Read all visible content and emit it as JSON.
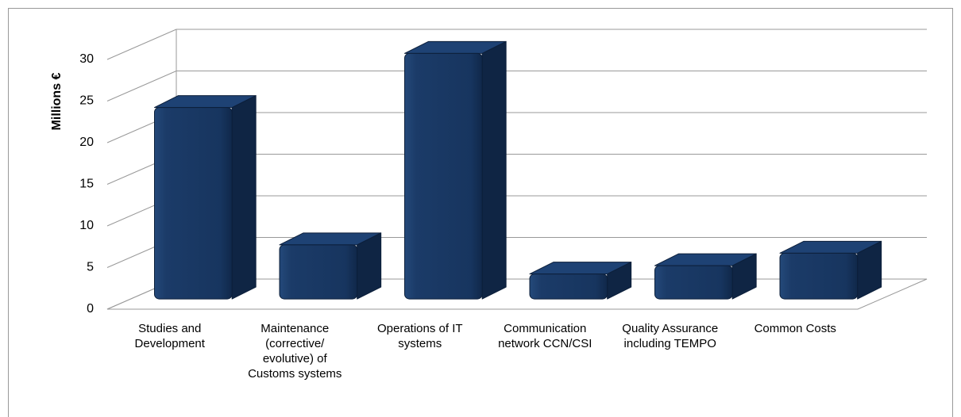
{
  "chart_data": {
    "type": "bar3d",
    "y_label": "Millions €",
    "categories": [
      "Studies and Development",
      "Maintenance (corrective/ evolutive) of Customs systems",
      "Operations of IT systems",
      "Communication network CCN/CSI",
      "Quality Assurance including TEMPO",
      "Common Costs"
    ],
    "values": [
      23,
      6.5,
      29.5,
      3,
      4,
      5.5
    ],
    "color": "#1a3a66",
    "ylim": [
      0,
      30
    ],
    "yticks": [
      0,
      5,
      10,
      15,
      20,
      25,
      30
    ],
    "grid": true
  }
}
